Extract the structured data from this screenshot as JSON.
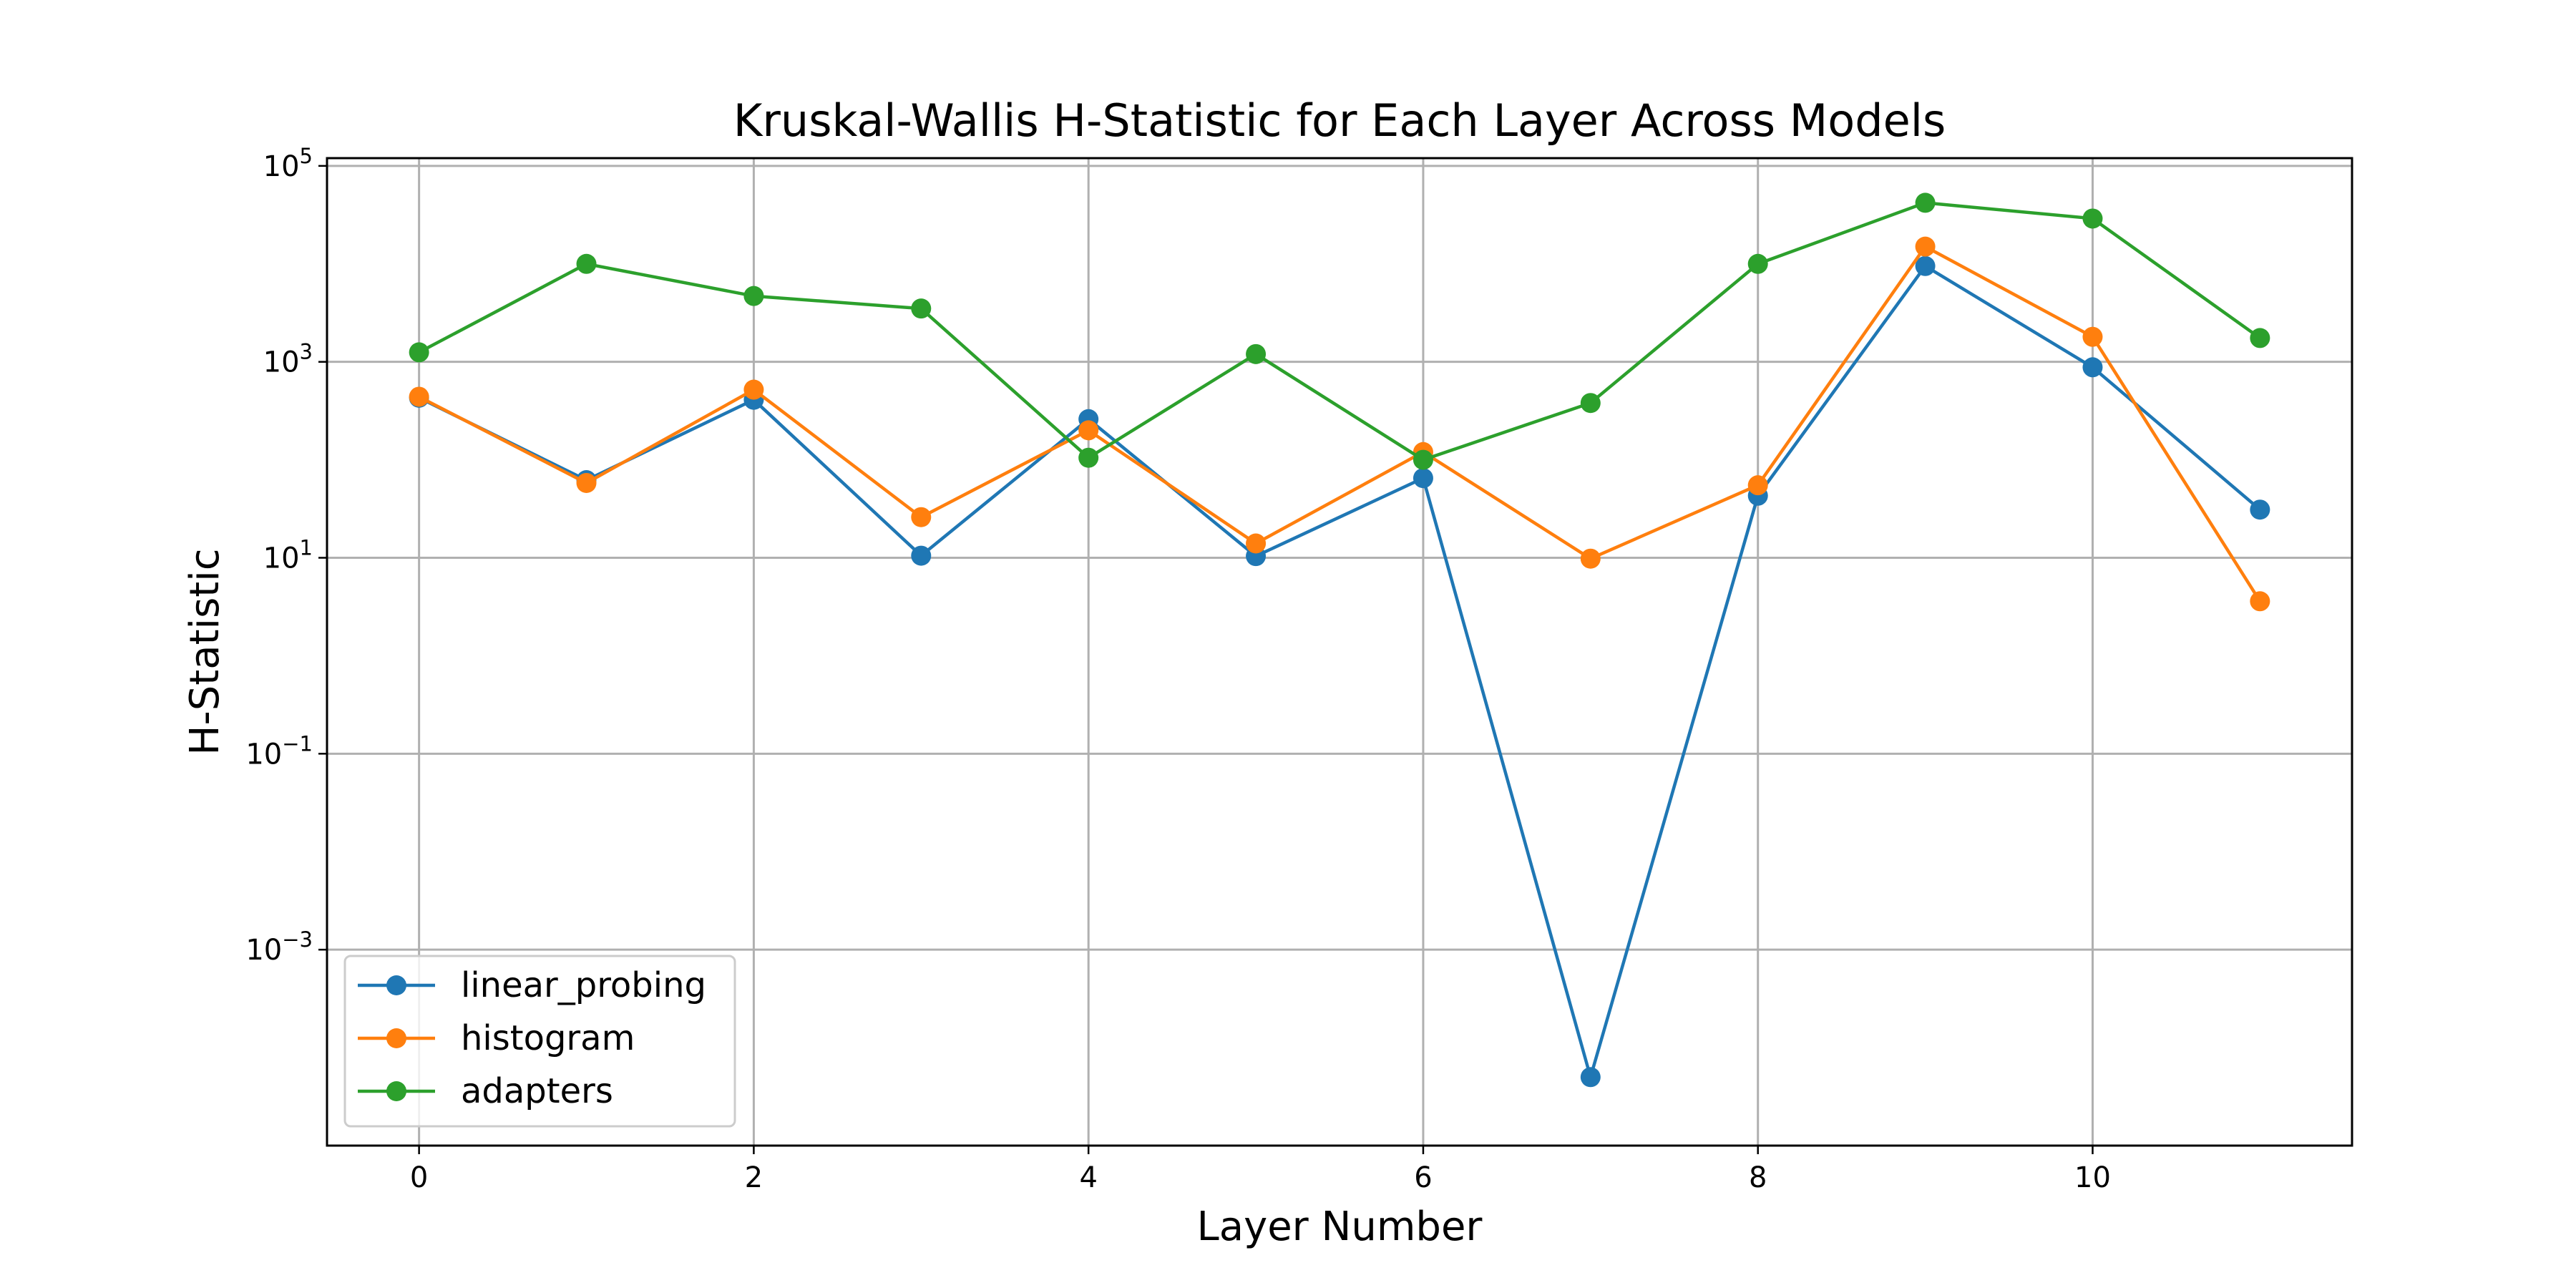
{
  "chart_data": {
    "type": "line",
    "title": "Kruskal-Wallis H-Statistic for Each Layer Across Models",
    "xlabel": "Layer Number",
    "ylabel": "H-Statistic",
    "xlim": [
      -0.55,
      11.55
    ],
    "ylim": [
      1e-05,
      120000
    ],
    "yscale": "log",
    "grid": true,
    "legend_position": "lower-left",
    "x": [
      0,
      1,
      2,
      3,
      4,
      5,
      6,
      7,
      8,
      9,
      10,
      11
    ],
    "x_ticks": [
      0,
      2,
      4,
      6,
      8,
      10
    ],
    "y_ticks": [
      {
        "base": "10",
        "exponent": "−3",
        "value": 0.001
      },
      {
        "base": "10",
        "exponent": "−1",
        "value": 0.1
      },
      {
        "base": "10",
        "exponent": "1",
        "value": 10
      },
      {
        "base": "10",
        "exponent": "3",
        "value": 1000
      },
      {
        "base": "10",
        "exponent": "5",
        "value": 100000
      }
    ],
    "series": [
      {
        "name": "linear_probing",
        "color": "#1f77b4",
        "values": [
          430,
          62,
          410,
          10.5,
          260,
          10.4,
          65,
          5e-05,
          43,
          9500,
          880,
          31
        ]
      },
      {
        "name": "histogram",
        "color": "#ff7f0e",
        "values": [
          440,
          58,
          520,
          26,
          200,
          14,
          120,
          9.8,
          55,
          15000,
          1800,
          3.6
        ]
      },
      {
        "name": "adapters",
        "color": "#2ca02c",
        "values": [
          1250,
          10000,
          4700,
          3500,
          105,
          1200,
          100,
          380,
          10000,
          42000,
          29000,
          1750
        ]
      }
    ]
  }
}
